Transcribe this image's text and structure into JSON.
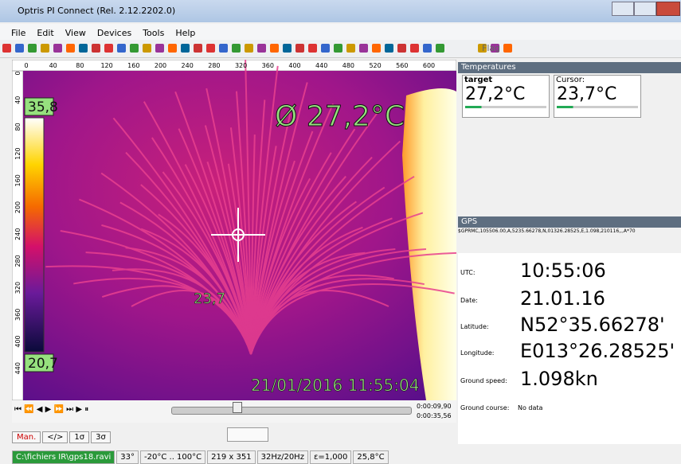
{
  "window": {
    "title": "Optris PI Connect (Rel. 2.12.2202.0)"
  },
  "menu": [
    "File",
    "Edit",
    "View",
    "Devices",
    "Tools",
    "Help"
  ],
  "toolbar": {
    "flag": "Flag"
  },
  "image": {
    "ruler_top": [
      "0",
      "40",
      "80",
      "120",
      "160",
      "200",
      "240",
      "280",
      "320",
      "360",
      "400",
      "440",
      "480",
      "520",
      "560",
      "600"
    ],
    "ruler_left": [
      "0",
      "40",
      "80",
      "120",
      "160",
      "200",
      "240",
      "280",
      "320",
      "360",
      "400",
      "440"
    ],
    "scale_max": "35,8",
    "scale_min": "20,7",
    "average": "Ø 27,2°C",
    "cursor_value": "23,7",
    "timestamp": "21/01/2016 11:55:04"
  },
  "playback": {
    "current": "0:00:09,90",
    "total": "0:00:35,56",
    "buttons": [
      "Man.",
      "</>",
      "1σ",
      "3σ"
    ]
  },
  "temperatures": {
    "title": "Temperatures",
    "fields": [
      {
        "label": "target",
        "value": "27,2°C"
      },
      {
        "label": "Cursor:",
        "value": "23,7°C"
      }
    ]
  },
  "gps": {
    "title": "GPS",
    "sentence": "$GPRMC,105506.00,A,5235.66278,N,01326.28525,E,1.098,210116,,,A*70",
    "rows": [
      {
        "label": "UTC:",
        "value": "10:55:06"
      },
      {
        "label": "Date:",
        "value": "21.01.16"
      },
      {
        "label": "Latitude:",
        "value": "N52°35.66278'"
      },
      {
        "label": "Longitude:",
        "value": "E013°26.28525'"
      },
      {
        "label": "Ground speed:",
        "value": "1.098kn"
      },
      {
        "label": "Ground course:",
        "value": "No data"
      }
    ]
  },
  "status_bar": [
    "C:\\fichiers IR\\gps18.ravi",
    "33°",
    "-20°C .. 100°C",
    "219 x 351",
    "32Hz/20Hz",
    "ε=1,000",
    "25,8°C"
  ]
}
